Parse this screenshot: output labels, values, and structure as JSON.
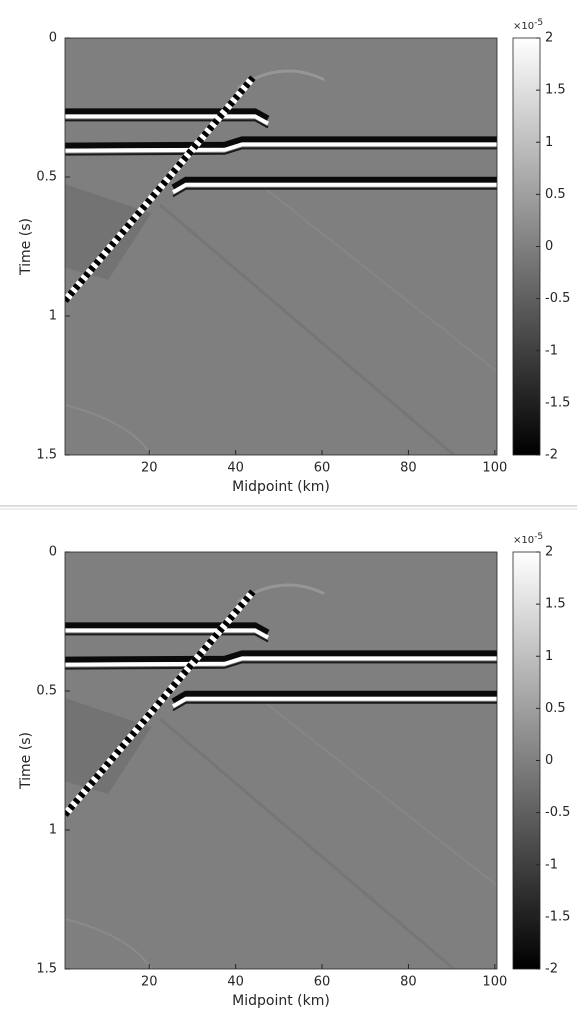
{
  "chart_data": [
    {
      "type": "heatmap",
      "xlabel": "Midpoint (km)",
      "ylabel": "Time (s)",
      "colormap": "gray",
      "xlim": [
        0.5,
        100.5
      ],
      "xticks": [
        20,
        40,
        60,
        80,
        100
      ],
      "ylim": [
        0,
        1.5
      ],
      "y_reversed": true,
      "yticks": [
        0,
        0.5,
        1,
        1.5
      ],
      "colorbar": {
        "lim": [
          -2,
          2
        ],
        "ticks": [
          -2,
          -1.5,
          -1,
          -0.5,
          0,
          0.5,
          1,
          1.5,
          2
        ],
        "multiplier": "×10",
        "exponent": "-5",
        "colors": [
          "#000000",
          "#ffffff"
        ]
      }
    },
    {
      "type": "heatmap",
      "xlabel": "Midpoint (km)",
      "ylabel": "Time (s)",
      "colormap": "gray",
      "xlim": [
        0.5,
        100.5
      ],
      "xticks": [
        20,
        40,
        60,
        80,
        100
      ],
      "ylim": [
        0,
        1.5
      ],
      "y_reversed": true,
      "yticks": [
        0,
        0.5,
        1,
        1.5
      ],
      "colorbar": {
        "lim": [
          -2,
          2
        ],
        "ticks": [
          -2,
          -1.5,
          -1,
          -0.5,
          0,
          0.5,
          1,
          1.5,
          2
        ],
        "multiplier": "×10",
        "exponent": "-5",
        "colors": [
          "#000000",
          "#ffffff"
        ]
      }
    }
  ]
}
